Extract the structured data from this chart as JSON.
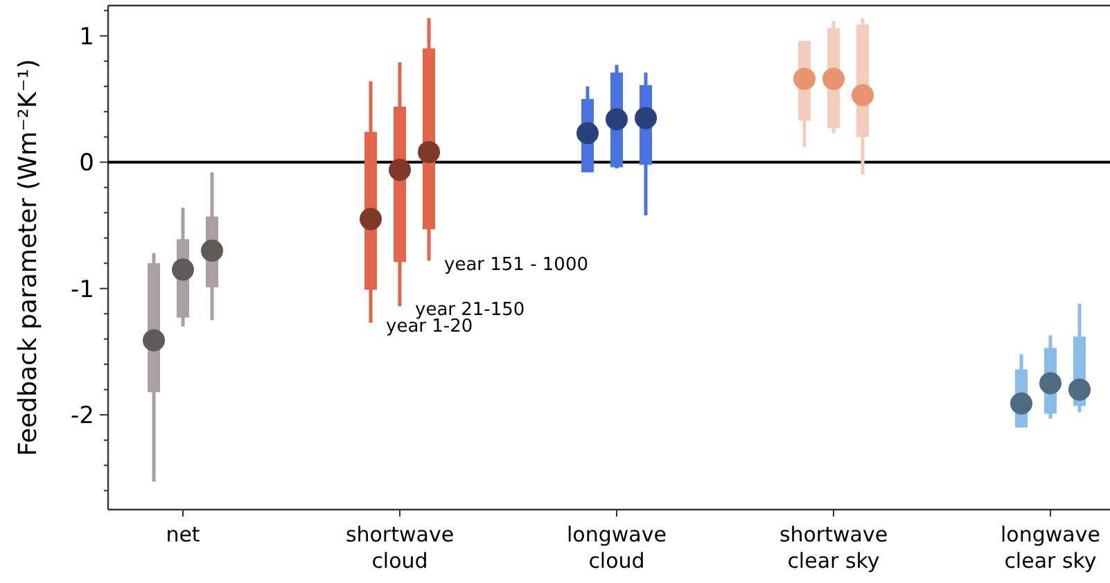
{
  "chart_data": {
    "type": "box",
    "ylabel": "Feedback parameter (Wm⁻²K⁻¹)",
    "categories": [
      "net",
      "shortwave\ncloud",
      "longwave\ncloud",
      "shortwave\nclear sky",
      "longwave\nclear sky"
    ],
    "ylim": [
      -2.75,
      1.24
    ],
    "yticks": [
      {
        "value": -2.6,
        "label": null
      },
      {
        "value": -2.4,
        "label": null
      },
      {
        "value": -2.2,
        "label": null
      },
      -2,
      {
        "value": -1.8,
        "label": null
      },
      {
        "value": -1.6,
        "label": null
      },
      {
        "value": -1.4,
        "label": null
      },
      {
        "value": -1.2,
        "label": null
      },
      -1,
      {
        "value": -0.8,
        "label": null
      },
      {
        "value": -0.6,
        "label": null
      },
      {
        "value": -0.4,
        "label": null
      },
      {
        "value": -0.2,
        "label": null
      },
      0,
      {
        "value": 0.2,
        "label": null
      },
      {
        "value": 0.4,
        "label": null
      },
      {
        "value": 0.6,
        "label": null
      },
      {
        "value": 0.8,
        "label": null
      },
      1,
      {
        "value": 1.2,
        "label": null
      }
    ],
    "series": [
      {
        "name": "year 1-20",
        "colors": [
          "#aaa0a0",
          "#e0654a",
          "#4a72e0",
          "#f5ccbc",
          "#8bbce8"
        ],
        "boxes": [
          {
            "low": -2.53,
            "q1": -1.82,
            "median": -1.41,
            "q3": -0.8,
            "high": -0.72
          },
          {
            "low": -1.27,
            "q1": -1.01,
            "median": -0.45,
            "q3": 0.24,
            "high": 0.64
          },
          {
            "low": -0.08,
            "q1": -0.08,
            "median": 0.23,
            "q3": 0.5,
            "high": 0.6
          },
          {
            "low": 0.12,
            "q1": 0.33,
            "median": 0.66,
            "q3": 0.96,
            "high": 0.96
          },
          {
            "low": -2.1,
            "q1": -2.1,
            "median": -1.91,
            "q3": -1.64,
            "high": -1.52
          }
        ]
      },
      {
        "name": "year 21-150",
        "colors": [
          "#aaa0a0",
          "#e0654a",
          "#4a72e0",
          "#f5ccbc",
          "#8bbce8"
        ],
        "boxes": [
          {
            "low": -1.3,
            "q1": -1.23,
            "median": -0.85,
            "q3": -0.61,
            "high": -0.36
          },
          {
            "low": -1.14,
            "q1": -0.79,
            "median": -0.06,
            "q3": 0.44,
            "high": 0.79
          },
          {
            "low": -0.05,
            "q1": -0.04,
            "median": 0.34,
            "q3": 0.71,
            "high": 0.77
          },
          {
            "low": 0.23,
            "q1": 0.27,
            "median": 0.66,
            "q3": 1.06,
            "high": 1.12
          },
          {
            "low": -2.03,
            "q1": -1.99,
            "median": -1.75,
            "q3": -1.47,
            "high": -1.37
          }
        ]
      },
      {
        "name": "year 151 - 1000",
        "colors": [
          "#aaa0a0",
          "#e0654a",
          "#4a72e0",
          "#f5ccbc",
          "#8bbce8"
        ],
        "boxes": [
          {
            "low": -1.25,
            "q1": -0.99,
            "median": -0.7,
            "q3": -0.43,
            "high": -0.08
          },
          {
            "low": -0.78,
            "q1": -0.53,
            "median": 0.08,
            "q3": 0.9,
            "high": 1.14
          },
          {
            "low": -0.42,
            "q1": -0.02,
            "median": 0.35,
            "q3": 0.61,
            "high": 0.71
          },
          {
            "low": -0.1,
            "q1": 0.2,
            "median": 0.53,
            "q3": 1.09,
            "high": 1.14
          },
          {
            "low": -1.98,
            "q1": -1.93,
            "median": -1.8,
            "q3": -1.38,
            "high": -1.12
          }
        ]
      }
    ],
    "ref_lines": [
      {
        "axis": "y",
        "value": 0,
        "color": "#000000"
      }
    ]
  }
}
